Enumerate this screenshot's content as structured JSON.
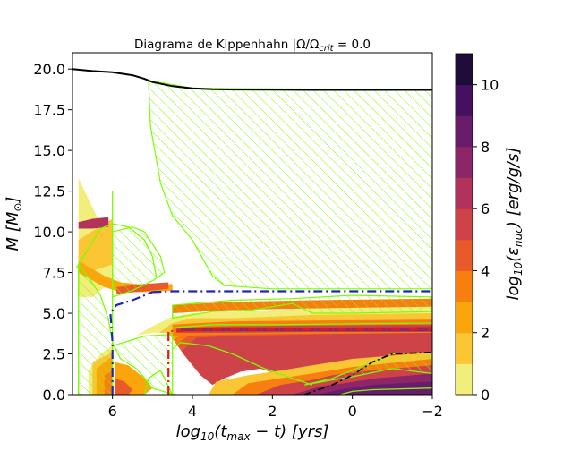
{
  "chart_data": {
    "type": "area",
    "title": "Diagrama de Kippenhahn |Ω/Ω",
    "title_sub": "crit",
    "title_tail": " = 0.0",
    "xlabel": {
      "base": "log",
      "sub1": "10",
      "mid": "(t",
      "sub2": "max",
      "tail": " − t) [yrs]"
    },
    "ylabel": {
      "base": "M [M",
      "sub": "⊙",
      "tail": "]"
    },
    "colorbar_label": {
      "base": "log",
      "sub1": "10",
      "mid": "(ε",
      "sub2": "nuc",
      "tail": ") [erg/g/s]"
    },
    "x_ticks": [
      "6",
      "4",
      "2",
      "0",
      "−2"
    ],
    "y_ticks": [
      "0.0",
      "2.5",
      "5.0",
      "7.5",
      "10.0",
      "12.5",
      "15.0",
      "17.5",
      "20.0"
    ],
    "colorbar_ticks": [
      "0",
      "2",
      "4",
      "6",
      "8",
      "10"
    ],
    "xlim": [
      7,
      -2
    ],
    "ylim": [
      0,
      21
    ],
    "clim": [
      0,
      11
    ],
    "colorbar_levels": [
      0,
      1,
      2,
      3,
      4,
      5,
      6,
      7,
      8,
      9,
      10,
      11
    ],
    "colorbar_colors": [
      "#f1ee7b",
      "#fbc633",
      "#fba50d",
      "#f77f0f",
      "#e85a29",
      "#cd4347",
      "#b1325a",
      "#8c2668",
      "#6a1c6c",
      "#45105f",
      "#200c39",
      "#000004"
    ],
    "total_mass": {
      "t": [
        7,
        6.5,
        6,
        5.5,
        5.2,
        5,
        4.5,
        4,
        3.5,
        3,
        2,
        1,
        0,
        -1,
        -2
      ],
      "m": [
        20,
        19.88,
        19.8,
        19.62,
        19.4,
        19.2,
        18.95,
        18.82,
        18.76,
        18.74,
        18.73,
        18.72,
        18.72,
        18.72,
        18.72
      ]
    },
    "convective_boundary_color": "#7cfc00",
    "boundary_line_colors": {
      "blue": "#1f28b4",
      "red": "#e01b1b",
      "black": "#000000"
    }
  }
}
